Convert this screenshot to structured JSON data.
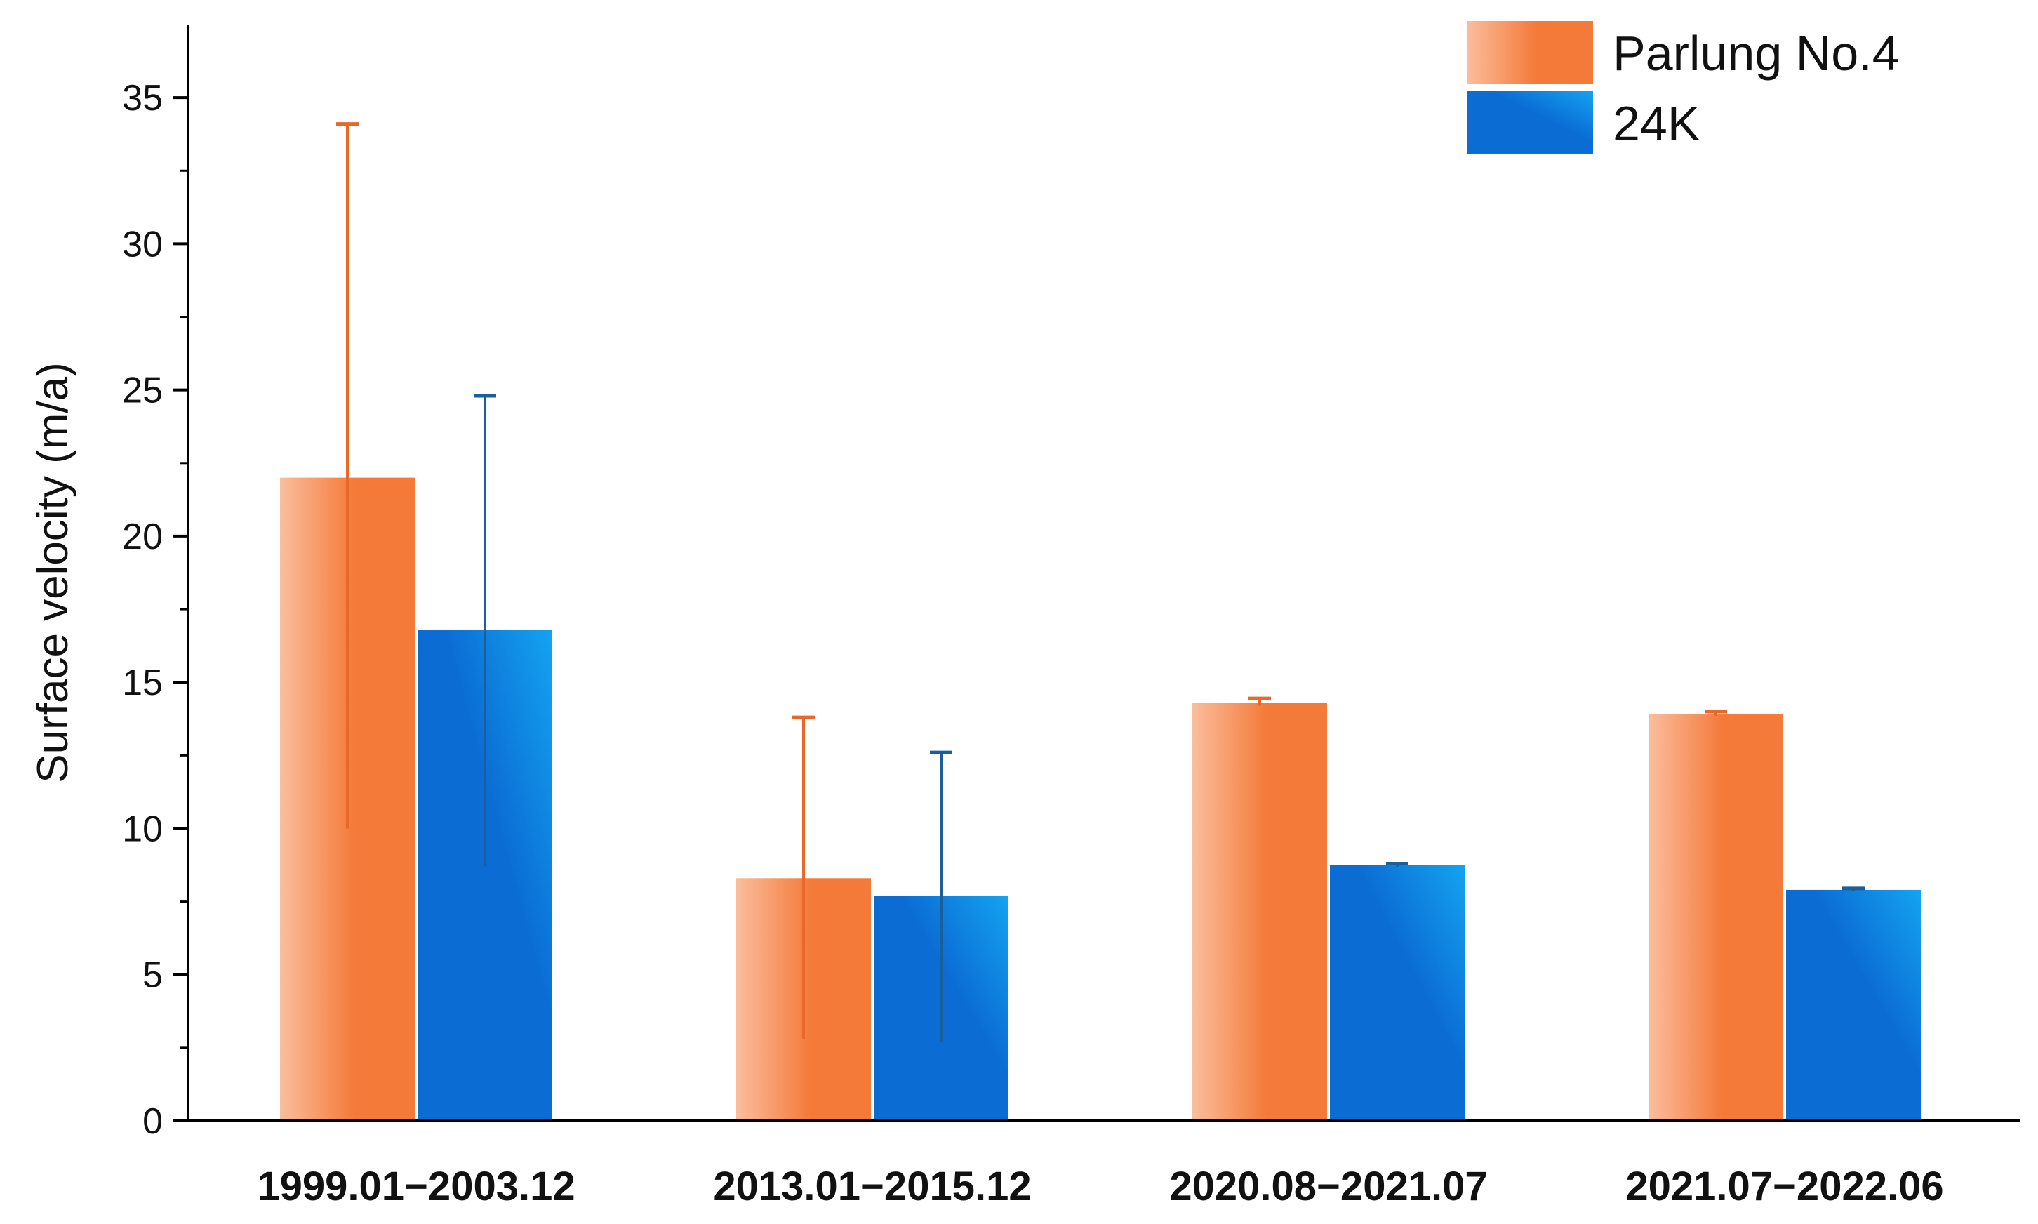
{
  "chart_data": {
    "type": "bar",
    "title": "",
    "xlabel": "",
    "ylabel": "Surface velocity (m/a)",
    "ylim": [
      0,
      37.5
    ],
    "yticks": [
      0,
      5,
      10,
      15,
      20,
      25,
      30,
      35
    ],
    "grid": false,
    "legend_position": "top-right",
    "categories": [
      "1999.01−2003.12",
      "2013.01−2015.12",
      "2020.08−2021.07",
      "2021.07−2022.06"
    ],
    "series": [
      {
        "name": "Parlung No.4",
        "color": "#f47a3a",
        "light_color": "#fbbd9d",
        "values": [
          22.0,
          8.3,
          14.3,
          13.9
        ],
        "error_low": [
          10.0,
          2.8,
          14.2,
          13.85
        ],
        "error_high": [
          34.1,
          13.8,
          14.45,
          14.0
        ]
      },
      {
        "name": "24K",
        "color": "#0b6dd4",
        "light_color": "#14a3f0",
        "values": [
          16.8,
          7.7,
          8.75,
          7.9
        ],
        "error_low": [
          8.7,
          2.7,
          8.7,
          7.85
        ],
        "error_high": [
          24.8,
          12.6,
          8.8,
          7.95
        ]
      }
    ]
  }
}
